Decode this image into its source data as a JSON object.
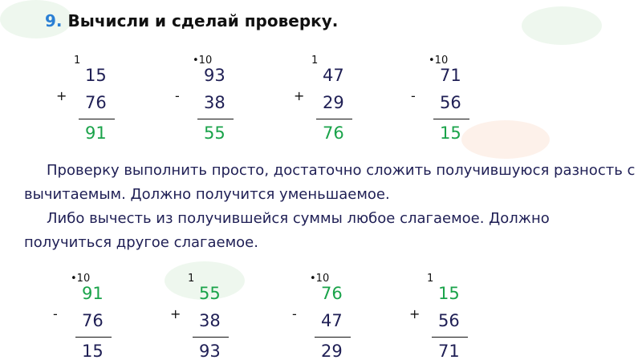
{
  "title": {
    "number": "9",
    "dot": ".",
    "text": "Вычисли и сделай проверку",
    "end": "."
  },
  "row1": [
    {
      "op": "+",
      "carry": "1",
      "a": "15",
      "b": "76",
      "r": "91"
    },
    {
      "op": "-",
      "carry": "•10",
      "a": "93",
      "b": "38",
      "r": "55"
    },
    {
      "op": "+",
      "carry": "1",
      "a": "47",
      "b": "29",
      "r": "76"
    },
    {
      "op": "-",
      "carry": "•10",
      "a": "71",
      "b": "56",
      "r": "15"
    }
  ],
  "text": {
    "p1_line1": "Проверку выполнить просто, достаточно сложить получившуюся разность с",
    "p1_line2": "вычитаемым. Должно получится уменьшаемое.",
    "p2_line1": "Либо  вычесть  из  получившейся  суммы  любое  слагаемое.  Должно",
    "p2_line2": "получиться другое слагаемое."
  },
  "row2": [
    {
      "op": "-",
      "carry": "•10",
      "a": "91",
      "b": "76",
      "r": "15"
    },
    {
      "op": "+",
      "carry": "1",
      "a": "55",
      "b": "38",
      "r": "93"
    },
    {
      "op": "-",
      "carry": "•10",
      "a": "76",
      "b": "47",
      "r": "29"
    },
    {
      "op": "+",
      "carry": "1",
      "a": "15",
      "b": "56",
      "r": "71"
    }
  ],
  "colors": {
    "green": "#1aa34a",
    "navy": "#1f1f55",
    "blue": "#2a7fd4"
  }
}
